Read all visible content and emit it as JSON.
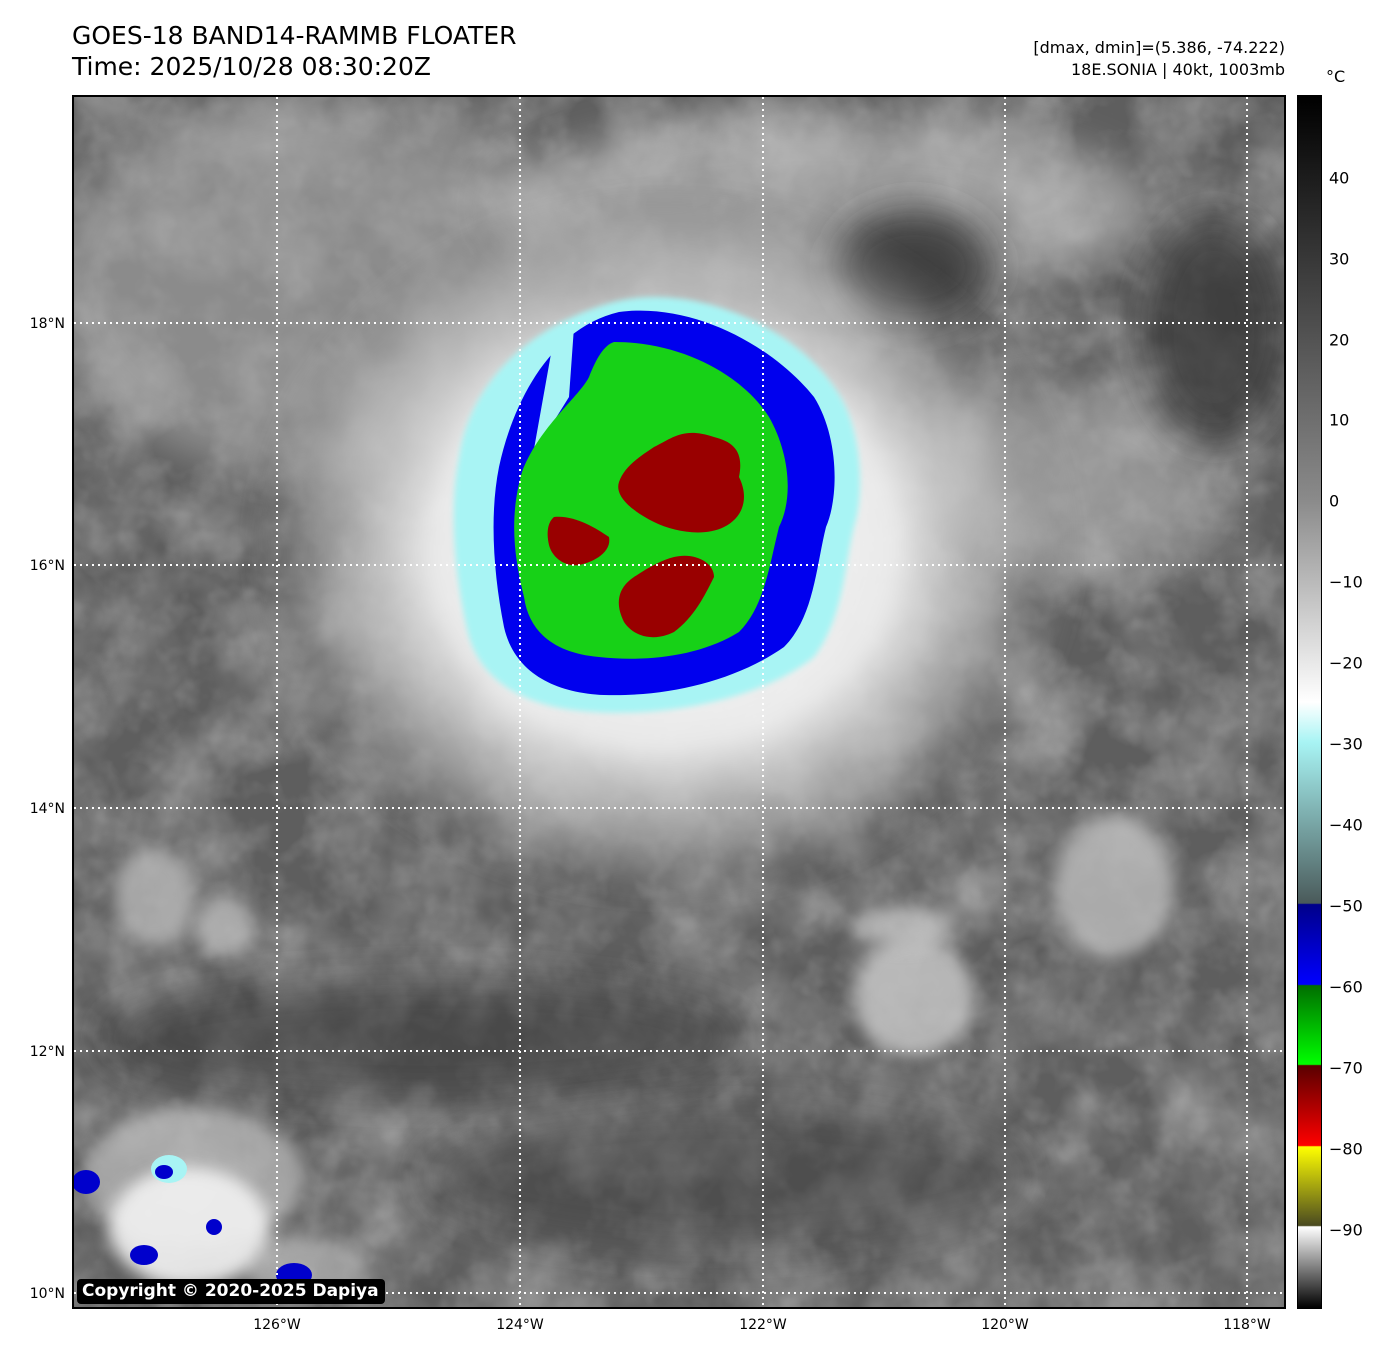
{
  "header": {
    "title": "GOES-18 BAND14-RAMMB FLOATER",
    "time": "Time: 2025/10/28 08:30:20Z",
    "dminmax": "[dmax, dmin]=(5.386, -74.222)",
    "storm": "18E.SONIA | 40kt, 1003mb"
  },
  "map": {
    "lat_labels": [
      "18°N",
      "16°N",
      "14°N",
      "12°N",
      "10°N"
    ],
    "lon_labels": [
      "126°W",
      "124°W",
      "122°W",
      "120°W",
      "118°W"
    ],
    "copyright": "Copyright © 2020-2025 Dapiya"
  },
  "colorbar": {
    "unit": "°C",
    "ticks": [
      "40",
      "30",
      "20",
      "10",
      "0",
      "−10",
      "−20",
      "−30",
      "−40",
      "−50",
      "−60",
      "−70",
      "−80",
      "−90"
    ],
    "colors": {
      "warm": "#000000",
      "mid": "#8a8a8a",
      "white": "#ffffff",
      "cyan": "#a8f4f4",
      "gray_blue": "#4a5a5a",
      "navy": "#00008a",
      "blue": "#0000ff",
      "green_dark": "#006e00",
      "green": "#00ff00",
      "maroon": "#5a0000",
      "red": "#ff0000",
      "yellow": "#ffff00",
      "olive": "#4a4a20"
    }
  }
}
